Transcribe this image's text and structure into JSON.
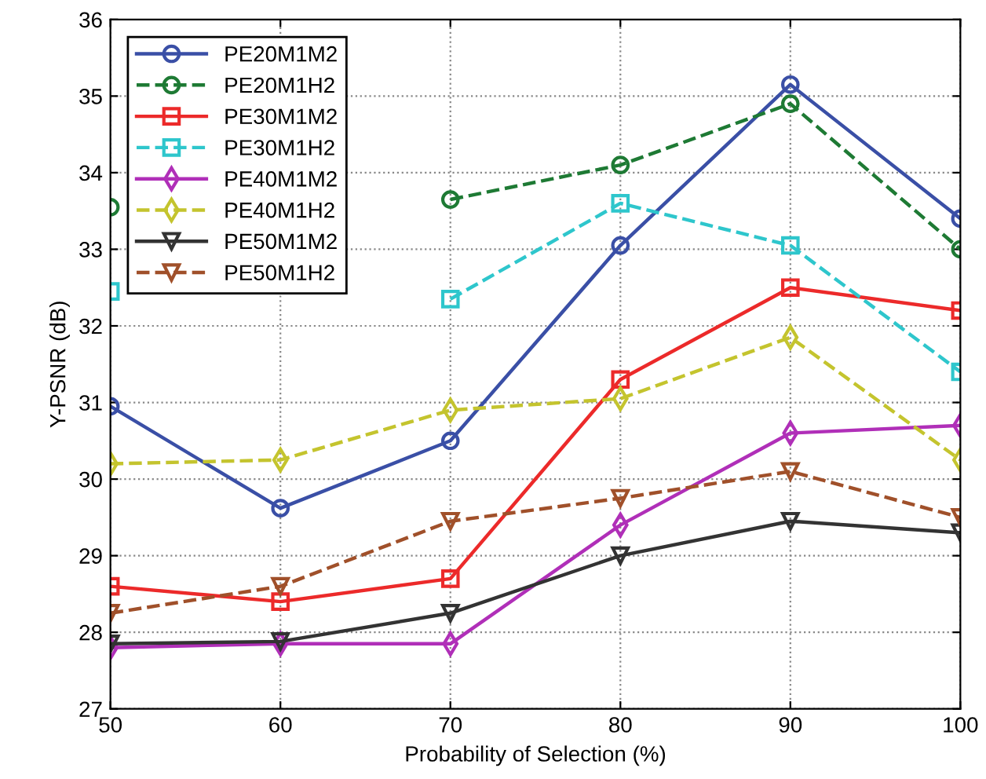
{
  "chart_data": {
    "type": "line",
    "xlabel": "Probability of Selection (%)",
    "ylabel": "Y-PSNR (dB)",
    "x": [
      50,
      60,
      70,
      80,
      90,
      100
    ],
    "xlim": [
      50,
      100
    ],
    "xticks": [
      50,
      60,
      70,
      80,
      90,
      100
    ],
    "ylim": [
      27,
      36
    ],
    "yticks": [
      27,
      28,
      29,
      30,
      31,
      32,
      33,
      34,
      35,
      36
    ],
    "grid": true,
    "legend": "top left",
    "series": [
      {
        "name": "PE20M1M2",
        "color": "#3a4fa6",
        "marker": "circle",
        "line_style": "solid",
        "values": [
          30.95,
          29.62,
          30.5,
          33.05,
          35.15,
          33.4
        ]
      },
      {
        "name": "PE20M1H2",
        "color": "#1e7a34",
        "marker": "circle",
        "line_style": "dashed",
        "values": [
          33.55,
          null,
          33.65,
          34.1,
          34.9,
          33.0
        ]
      },
      {
        "name": "PE30M1M2",
        "color": "#ec2a2a",
        "marker": "square",
        "line_style": "solid",
        "values": [
          28.6,
          28.4,
          28.7,
          31.3,
          32.5,
          32.2
        ]
      },
      {
        "name": "PE30M1H2",
        "color": "#2ec6cc",
        "marker": "square",
        "line_style": "dashed",
        "values": [
          32.45,
          null,
          32.35,
          33.6,
          33.05,
          31.4
        ]
      },
      {
        "name": "PE40M1M2",
        "color": "#b02fb8",
        "marker": "diamond",
        "line_style": "solid",
        "values": [
          27.8,
          27.85,
          27.85,
          29.4,
          30.6,
          30.7
        ]
      },
      {
        "name": "PE40M1H2",
        "color": "#c4c42e",
        "marker": "diamond",
        "line_style": "dashed",
        "values": [
          30.2,
          30.25,
          30.9,
          31.05,
          31.85,
          30.25
        ]
      },
      {
        "name": "PE50M1M2",
        "color": "#333333",
        "marker": "triangle",
        "line_style": "solid",
        "values": [
          27.85,
          27.88,
          28.25,
          29.0,
          29.45,
          29.3
        ]
      },
      {
        "name": "PE50M1H2",
        "color": "#a0502a",
        "marker": "triangle",
        "line_style": "dashed",
        "values": [
          28.25,
          28.6,
          29.45,
          29.75,
          30.1,
          29.5
        ]
      }
    ]
  }
}
